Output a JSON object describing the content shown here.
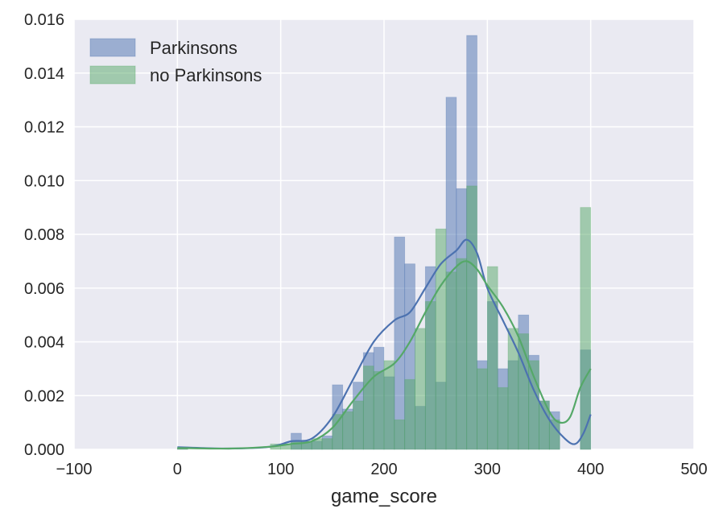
{
  "chart_data": {
    "type": "histogram",
    "xlabel": "game_score",
    "ylabel": "",
    "xlim": [
      -100,
      500
    ],
    "ylim": [
      0,
      0.016
    ],
    "xticks": [
      "−100",
      "0",
      "100",
      "200",
      "300",
      "400",
      "500"
    ],
    "xtick_values": [
      -100,
      0,
      100,
      200,
      300,
      400,
      500
    ],
    "yticks": [
      "0.000",
      "0.002",
      "0.004",
      "0.006",
      "0.008",
      "0.010",
      "0.012",
      "0.014",
      "0.016"
    ],
    "ytick_values": [
      0,
      0.002,
      0.004,
      0.006,
      0.008,
      0.01,
      0.012,
      0.014,
      0.016
    ],
    "grid": true,
    "legend_position": "top-left",
    "series": [
      {
        "name": "Parkinsons",
        "color": "#4c72b0",
        "bins": [
          [
            0,
            10,
            5e-05
          ],
          [
            110,
            120,
            0.0006
          ],
          [
            120,
            130,
            0.0003
          ],
          [
            130,
            140,
            0.0003
          ],
          [
            140,
            150,
            0.0005
          ],
          [
            150,
            160,
            0.0024
          ],
          [
            160,
            170,
            0.0015
          ],
          [
            170,
            180,
            0.0025
          ],
          [
            180,
            190,
            0.0036
          ],
          [
            190,
            200,
            0.0038
          ],
          [
            200,
            210,
            0.0027
          ],
          [
            210,
            220,
            0.0079
          ],
          [
            220,
            230,
            0.0069
          ],
          [
            230,
            240,
            0.0016
          ],
          [
            240,
            250,
            0.0068
          ],
          [
            250,
            260,
            0.0025
          ],
          [
            260,
            270,
            0.0131
          ],
          [
            270,
            280,
            0.0097
          ],
          [
            280,
            290,
            0.0154
          ],
          [
            290,
            300,
            0.0033
          ],
          [
            300,
            310,
            0.0055
          ],
          [
            310,
            320,
            0.003
          ],
          [
            320,
            330,
            0.0033
          ],
          [
            330,
            340,
            0.005
          ],
          [
            340,
            350,
            0.0035
          ],
          [
            350,
            360,
            0.0018
          ],
          [
            360,
            370,
            0.0014
          ],
          [
            390,
            400,
            0.0037
          ]
        ],
        "kde": [
          [
            0,
            8e-05
          ],
          [
            50,
            3e-05
          ],
          [
            90,
            0.0001
          ],
          [
            110,
            0.0003
          ],
          [
            130,
            0.0004
          ],
          [
            150,
            0.0012
          ],
          [
            170,
            0.0026
          ],
          [
            190,
            0.004
          ],
          [
            210,
            0.0048
          ],
          [
            225,
            0.0051
          ],
          [
            240,
            0.006
          ],
          [
            255,
            0.0069
          ],
          [
            270,
            0.0074
          ],
          [
            280,
            0.0078
          ],
          [
            290,
            0.0073
          ],
          [
            300,
            0.006
          ],
          [
            315,
            0.0048
          ],
          [
            330,
            0.0036
          ],
          [
            345,
            0.0022
          ],
          [
            360,
            0.0011
          ],
          [
            375,
            0.0004
          ],
          [
            385,
            0.0002
          ],
          [
            393,
            0.0006
          ],
          [
            400,
            0.0013
          ]
        ]
      },
      {
        "name": "no Parkinsons",
        "color": "#55a868",
        "bins": [
          [
            0,
            10,
            5e-05
          ],
          [
            90,
            100,
            0.0002
          ],
          [
            100,
            110,
            0.0002
          ],
          [
            110,
            120,
            0.0003
          ],
          [
            120,
            130,
            0.0003
          ],
          [
            130,
            140,
            0.0004
          ],
          [
            140,
            150,
            0.0004
          ],
          [
            150,
            160,
            0.0013
          ],
          [
            160,
            170,
            0.0014
          ],
          [
            170,
            180,
            0.0018
          ],
          [
            180,
            190,
            0.0031
          ],
          [
            190,
            200,
            0.0029
          ],
          [
            200,
            210,
            0.0033
          ],
          [
            210,
            220,
            0.0011
          ],
          [
            220,
            230,
            0.0026
          ],
          [
            230,
            240,
            0.0045
          ],
          [
            240,
            250,
            0.0055
          ],
          [
            250,
            260,
            0.0082
          ],
          [
            260,
            270,
            0.0066
          ],
          [
            270,
            280,
            0.0071
          ],
          [
            280,
            290,
            0.0098
          ],
          [
            290,
            300,
            0.003
          ],
          [
            300,
            310,
            0.0068
          ],
          [
            310,
            320,
            0.0023
          ],
          [
            320,
            330,
            0.0045
          ],
          [
            330,
            340,
            0.0043
          ],
          [
            340,
            350,
            0.0033
          ],
          [
            350,
            360,
            0.0018
          ],
          [
            360,
            370,
            0.0011
          ],
          [
            390,
            400,
            0.009
          ]
        ],
        "kde": [
          [
            0,
            5e-05
          ],
          [
            50,
            3e-05
          ],
          [
            90,
            0.0001
          ],
          [
            110,
            0.0002
          ],
          [
            130,
            0.0003
          ],
          [
            150,
            0.0008
          ],
          [
            170,
            0.0018
          ],
          [
            190,
            0.0027
          ],
          [
            210,
            0.0032
          ],
          [
            225,
            0.004
          ],
          [
            240,
            0.0051
          ],
          [
            255,
            0.0061
          ],
          [
            270,
            0.0068
          ],
          [
            280,
            0.007
          ],
          [
            290,
            0.0067
          ],
          [
            300,
            0.0061
          ],
          [
            315,
            0.0053
          ],
          [
            330,
            0.0042
          ],
          [
            345,
            0.0027
          ],
          [
            360,
            0.0014
          ],
          [
            370,
            0.001
          ],
          [
            380,
            0.0012
          ],
          [
            390,
            0.0023
          ],
          [
            400,
            0.003
          ]
        ]
      }
    ]
  }
}
